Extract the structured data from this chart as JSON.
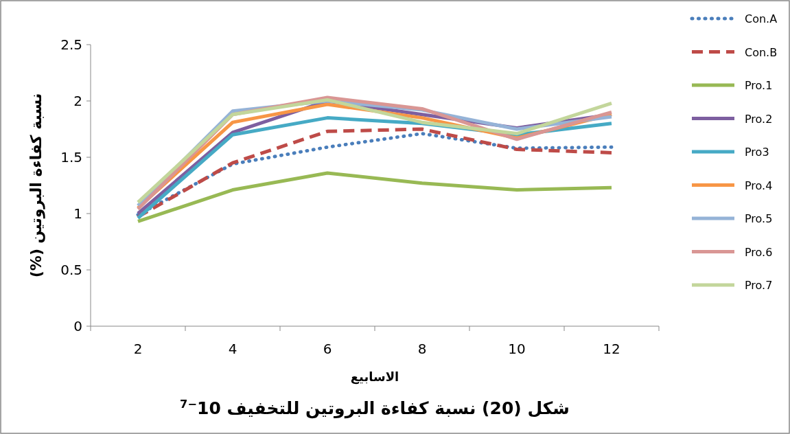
{
  "chart_data": {
    "type": "line",
    "title": "شكل (20) نسبة كفاءة البروتين للتخفيف 10$^{−7}$",
    "xlabel": "الاسابيع",
    "ylabel": "نسبة كفاءة البروتين (%)",
    "categories": [
      "2",
      "4",
      "6",
      "8",
      "10",
      "12"
    ],
    "ylim": [
      0,
      2.5
    ],
    "yticks": [
      0,
      0.5,
      1,
      1.5,
      2,
      2.5
    ],
    "grid": false,
    "legend": "right",
    "marker": "none",
    "series": [
      {
        "name": "Con.A",
        "color": "#4a7ebb",
        "line_style": "dotted",
        "values": [
          0.99,
          1.44,
          1.59,
          1.71,
          1.58,
          1.59
        ]
      },
      {
        "name": "Con.B",
        "color": "#be4b48",
        "line_style": "dashed",
        "values": [
          0.97,
          1.45,
          1.73,
          1.75,
          1.57,
          1.54
        ]
      },
      {
        "name": "Pro.1",
        "color": "#98b954",
        "line_style": "solid",
        "values": [
          0.93,
          1.21,
          1.36,
          1.27,
          1.21,
          1.23
        ]
      },
      {
        "name": "Pro.2",
        "color": "#7d5fa0",
        "line_style": "solid",
        "values": [
          1.0,
          1.72,
          2.0,
          1.88,
          1.76,
          1.88
        ]
      },
      {
        "name": "Pro3",
        "color": "#46aac5",
        "line_style": "solid",
        "values": [
          0.96,
          1.7,
          1.85,
          1.8,
          1.7,
          1.8
        ]
      },
      {
        "name": "Pro.4",
        "color": "#f79646",
        "line_style": "solid",
        "values": [
          1.05,
          1.81,
          1.97,
          1.85,
          1.67,
          1.88
        ]
      },
      {
        "name": "Pro.5",
        "color": "#95b3d7",
        "line_style": "solid",
        "values": [
          1.07,
          1.91,
          2.0,
          1.92,
          1.75,
          1.86
        ]
      },
      {
        "name": "Pro.6",
        "color": "#d99694",
        "line_style": "solid",
        "values": [
          1.04,
          1.88,
          2.03,
          1.93,
          1.66,
          1.9
        ]
      },
      {
        "name": "Pro.7",
        "color": "#c3d69b",
        "line_style": "solid",
        "values": [
          1.1,
          1.88,
          2.01,
          1.81,
          1.71,
          1.98
        ]
      }
    ]
  }
}
